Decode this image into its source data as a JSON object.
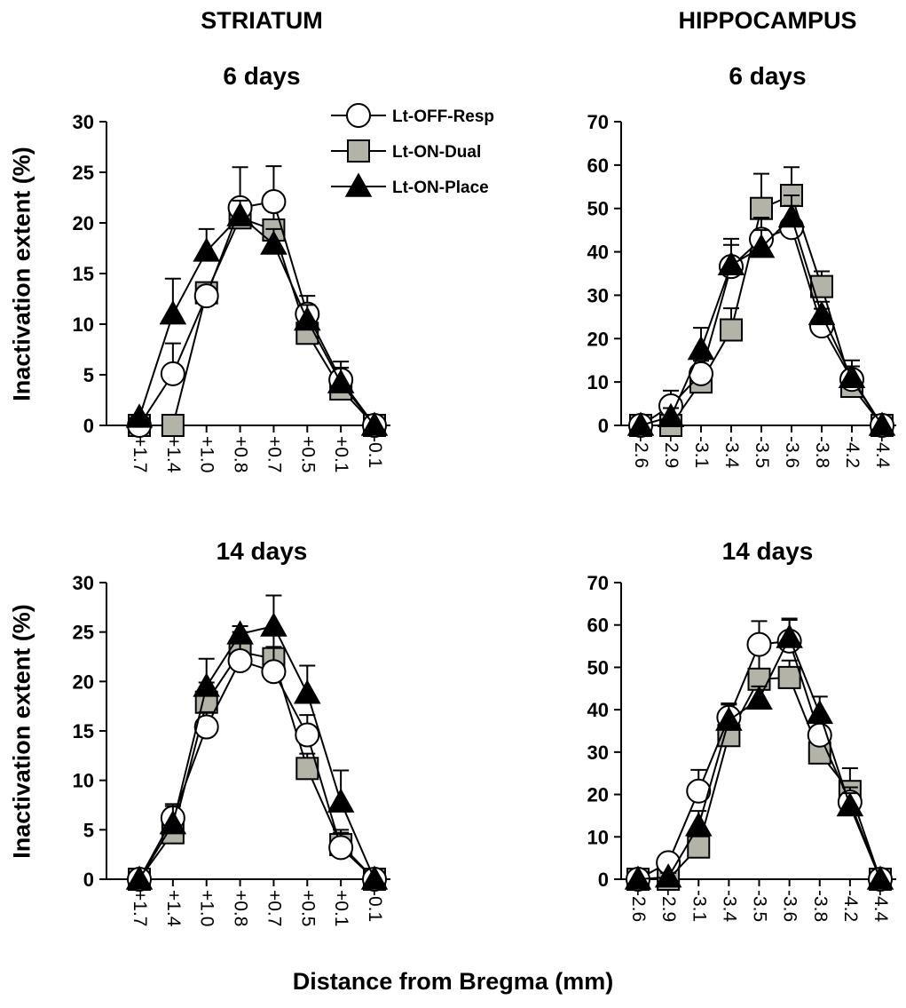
{
  "column_titles": [
    "STRIATUM",
    "HIPPOCAMPUS"
  ],
  "ylabel": "Inactivation extent (%)",
  "xlabel": "Distance from Bregma (mm)",
  "legend": [
    {
      "name": "Lt-OFF-Resp",
      "marker": "circle"
    },
    {
      "name": "Lt-ON-Dual",
      "marker": "square"
    },
    {
      "name": "Lt-ON-Place",
      "marker": "triangle"
    }
  ],
  "colors": {
    "circle_fill": "#ffffff",
    "square_fill": "#b3b3a8",
    "triangle_fill": "#000000",
    "stroke": "#000000"
  },
  "chart_data": [
    {
      "type": "line",
      "title": "6 days",
      "region": "STRIATUM",
      "categories": [
        "+1.7",
        "+1.4",
        "+1.0",
        "+0.8",
        "+0.7",
        "+0.5",
        "+0.1",
        "-0.1"
      ],
      "ylim": [
        0,
        30
      ],
      "yticks": [
        0,
        5,
        10,
        15,
        20,
        25,
        30
      ],
      "series": [
        {
          "name": "Lt-OFF-Resp",
          "values": [
            0,
            5.1,
            12.8,
            21.5,
            22.1,
            11.0,
            4.5,
            0
          ],
          "err": [
            0,
            3.0,
            0.8,
            4.0,
            3.5,
            1.8,
            1.8,
            0
          ]
        },
        {
          "name": "Lt-ON-Dual",
          "values": [
            0,
            0,
            13.1,
            20.5,
            19.3,
            9.1,
            3.6,
            0
          ],
          "err": [
            0,
            0,
            1.0,
            1.5,
            2.0,
            1.5,
            1.2,
            0
          ]
        },
        {
          "name": "Lt-ON-Place",
          "values": [
            0.8,
            11.0,
            17.2,
            20.7,
            17.9,
            10.4,
            4.2,
            0
          ],
          "err": [
            0,
            3.5,
            2.2,
            1.5,
            1.5,
            1.5,
            1.5,
            0
          ]
        }
      ]
    },
    {
      "type": "line",
      "title": "6 days",
      "region": "HIPPOCAMPUS",
      "categories": [
        "-2.6",
        "-2.9",
        "-3.1",
        "-3.4",
        "-3.5",
        "-3.6",
        "-3.8",
        "-4.2",
        "-4.4"
      ],
      "ylim": [
        0,
        70
      ],
      "yticks": [
        0,
        10,
        20,
        30,
        40,
        50,
        60,
        70
      ],
      "series": [
        {
          "name": "Lt-OFF-Resp",
          "values": [
            0,
            4.5,
            11.9,
            36.6,
            42.9,
            45.6,
            22.9,
            10.6,
            0
          ],
          "err": [
            0,
            3.5,
            3.0,
            5.0,
            5.0,
            5.0,
            4.0,
            3.0,
            0
          ]
        },
        {
          "name": "Lt-ON-Dual",
          "values": [
            0,
            0,
            10.0,
            22.0,
            50.0,
            53.0,
            32.0,
            9.0,
            0
          ],
          "err": [
            0,
            0,
            2.5,
            5.0,
            8.0,
            6.5,
            3.5,
            3.0,
            0
          ]
        },
        {
          "name": "Lt-ON-Place",
          "values": [
            0,
            2.0,
            17.5,
            37.0,
            41.0,
            48.0,
            25.5,
            11.0,
            0
          ],
          "err": [
            0,
            2.0,
            5.0,
            6.0,
            4.0,
            5.0,
            3.0,
            4.0,
            0
          ]
        }
      ]
    },
    {
      "type": "line",
      "title": "14 days",
      "region": "STRIATUM",
      "categories": [
        "+1.7",
        "+1.4",
        "+1.0",
        "+0.8",
        "+0.7",
        "+0.5",
        "+0.1",
        "-0.1"
      ],
      "ylim": [
        0,
        30
      ],
      "yticks": [
        0,
        5,
        10,
        15,
        20,
        25,
        30
      ],
      "series": [
        {
          "name": "Lt-OFF-Resp",
          "values": [
            0,
            6.2,
            15.4,
            22.1,
            21.0,
            14.6,
            3.2,
            0
          ],
          "err": [
            0,
            1.2,
            1.5,
            2.5,
            2.5,
            2.0,
            1.5,
            0
          ]
        },
        {
          "name": "Lt-ON-Dual",
          "values": [
            0,
            4.7,
            17.9,
            23.0,
            22.3,
            11.2,
            3.5,
            0
          ],
          "err": [
            0,
            1.5,
            2.0,
            2.0,
            2.5,
            1.5,
            1.5,
            0
          ]
        },
        {
          "name": "Lt-ON-Place",
          "values": [
            0,
            5.6,
            19.5,
            24.8,
            25.6,
            18.8,
            7.8,
            0
          ],
          "err": [
            0,
            2.0,
            2.8,
            0.8,
            3.1,
            2.8,
            3.2,
            0
          ]
        }
      ]
    },
    {
      "type": "line",
      "title": "14 days",
      "region": "HIPPOCAMPUS",
      "categories": [
        "-2.6",
        "-2.9",
        "-3.1",
        "-3.4",
        "-3.5",
        "-3.6",
        "-3.8",
        "-4.2",
        "-4.4"
      ],
      "ylim": [
        0,
        70
      ],
      "yticks": [
        0,
        10,
        20,
        30,
        40,
        50,
        60,
        70
      ],
      "series": [
        {
          "name": "Lt-OFF-Resp",
          "values": [
            0,
            3.9,
            20.8,
            38.2,
            55.4,
            56.2,
            34.0,
            18.2,
            0
          ],
          "err": [
            0,
            2.0,
            5.0,
            3.0,
            5.5,
            5.0,
            4.0,
            3.5,
            0
          ]
        },
        {
          "name": "Lt-ON-Dual",
          "values": [
            0,
            0,
            7.6,
            33.9,
            47.2,
            47.6,
            29.8,
            20.7,
            0
          ],
          "err": [
            0,
            0,
            3.0,
            3.0,
            6.8,
            4.0,
            3.5,
            5.5,
            0
          ]
        },
        {
          "name": "Lt-ON-Place",
          "values": [
            0,
            0.5,
            12.6,
            37.5,
            42.5,
            57.0,
            39.1,
            17.3,
            0
          ],
          "err": [
            0,
            1.0,
            3.5,
            4.0,
            3.0,
            4.5,
            4.0,
            3.0,
            0
          ]
        }
      ]
    }
  ]
}
